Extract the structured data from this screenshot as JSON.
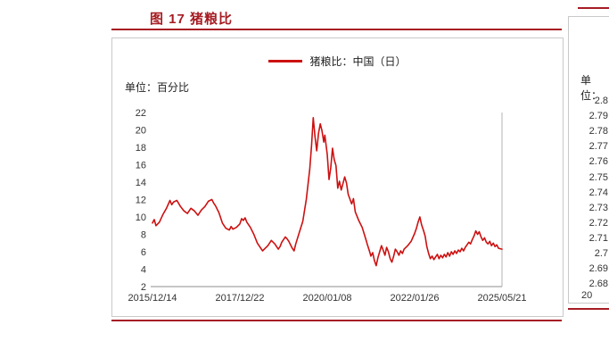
{
  "accent_color": "#a61c23",
  "line_color": "#cc1111",
  "left_panel": {
    "title": "图 17 猪粮比",
    "legend": "猪粮比：中国（日）",
    "unit": "单位：百分比"
  },
  "right_panel": {
    "unit": "单位：",
    "y_ticks": [
      "2.8",
      "2.79",
      "2.78",
      "2.77",
      "2.76",
      "2.75",
      "2.74",
      "2.73",
      "2.72",
      "2.71",
      "2.7",
      "2.69",
      "2.68"
    ],
    "partial_x_label": "20"
  },
  "chart_data": {
    "type": "line",
    "title": "图 17 猪粮比",
    "series_name": "猪粮比：中国（日）",
    "ylabel": "百分比",
    "ylim": [
      2,
      22
    ],
    "y_ticks": [
      22,
      20,
      18,
      16,
      14,
      12,
      10,
      8,
      6,
      4,
      2
    ],
    "x_tick_labels": [
      "2015/12/14",
      "2017/12/22",
      "2020/01/08",
      "2022/01/26",
      "2025/05/21"
    ],
    "grid": false,
    "legend_position": "top-center",
    "points": [
      [
        0,
        9.3
      ],
      [
        0.005,
        9.7
      ],
      [
        0.01,
        9.0
      ],
      [
        0.02,
        9.4
      ],
      [
        0.03,
        10.3
      ],
      [
        0.04,
        11.0
      ],
      [
        0.05,
        11.9
      ],
      [
        0.055,
        11.4
      ],
      [
        0.06,
        11.7
      ],
      [
        0.07,
        11.9
      ],
      [
        0.08,
        11.2
      ],
      [
        0.09,
        10.7
      ],
      [
        0.1,
        10.4
      ],
      [
        0.11,
        11.0
      ],
      [
        0.12,
        10.7
      ],
      [
        0.13,
        10.2
      ],
      [
        0.14,
        10.8
      ],
      [
        0.15,
        11.2
      ],
      [
        0.16,
        11.8
      ],
      [
        0.17,
        12.0
      ],
      [
        0.175,
        11.6
      ],
      [
        0.18,
        11.3
      ],
      [
        0.19,
        10.5
      ],
      [
        0.2,
        9.3
      ],
      [
        0.21,
        8.7
      ],
      [
        0.22,
        8.5
      ],
      [
        0.225,
        8.9
      ],
      [
        0.23,
        8.6
      ],
      [
        0.24,
        8.8
      ],
      [
        0.25,
        9.2
      ],
      [
        0.255,
        9.8
      ],
      [
        0.26,
        9.6
      ],
      [
        0.265,
        9.9
      ],
      [
        0.27,
        9.4
      ],
      [
        0.28,
        8.8
      ],
      [
        0.29,
        8.0
      ],
      [
        0.3,
        7.0
      ],
      [
        0.31,
        6.4
      ],
      [
        0.315,
        6.1
      ],
      [
        0.32,
        6.3
      ],
      [
        0.33,
        6.7
      ],
      [
        0.34,
        7.3
      ],
      [
        0.35,
        6.9
      ],
      [
        0.36,
        6.3
      ],
      [
        0.365,
        6.6
      ],
      [
        0.37,
        7.1
      ],
      [
        0.38,
        7.7
      ],
      [
        0.385,
        7.5
      ],
      [
        0.39,
        7.2
      ],
      [
        0.4,
        6.4
      ],
      [
        0.405,
        6.1
      ],
      [
        0.41,
        6.9
      ],
      [
        0.42,
        8.2
      ],
      [
        0.43,
        9.5
      ],
      [
        0.44,
        12.0
      ],
      [
        0.45,
        15.5
      ],
      [
        0.455,
        18.2
      ],
      [
        0.46,
        21.4
      ],
      [
        0.465,
        19.2
      ],
      [
        0.47,
        17.6
      ],
      [
        0.475,
        19.6
      ],
      [
        0.48,
        20.7
      ],
      [
        0.485,
        19.9
      ],
      [
        0.49,
        18.6
      ],
      [
        0.493,
        19.4
      ],
      [
        0.5,
        17.2
      ],
      [
        0.505,
        14.3
      ],
      [
        0.51,
        15.6
      ],
      [
        0.515,
        17.9
      ],
      [
        0.52,
        16.6
      ],
      [
        0.525,
        15.9
      ],
      [
        0.53,
        13.3
      ],
      [
        0.535,
        14.1
      ],
      [
        0.54,
        13.1
      ],
      [
        0.55,
        14.6
      ],
      [
        0.555,
        13.9
      ],
      [
        0.56,
        12.6
      ],
      [
        0.57,
        11.5
      ],
      [
        0.575,
        12.1
      ],
      [
        0.58,
        10.6
      ],
      [
        0.59,
        9.6
      ],
      [
        0.6,
        8.8
      ],
      [
        0.61,
        7.5
      ],
      [
        0.615,
        6.8
      ],
      [
        0.62,
        6.2
      ],
      [
        0.625,
        5.5
      ],
      [
        0.63,
        5.9
      ],
      [
        0.635,
        5.0
      ],
      [
        0.64,
        4.4
      ],
      [
        0.645,
        5.3
      ],
      [
        0.65,
        6.0
      ],
      [
        0.655,
        6.7
      ],
      [
        0.66,
        6.2
      ],
      [
        0.665,
        5.6
      ],
      [
        0.67,
        6.5
      ],
      [
        0.675,
        6.0
      ],
      [
        0.68,
        5.2
      ],
      [
        0.685,
        4.8
      ],
      [
        0.69,
        5.5
      ],
      [
        0.695,
        6.3
      ],
      [
        0.7,
        6.0
      ],
      [
        0.705,
        5.6
      ],
      [
        0.71,
        6.1
      ],
      [
        0.715,
        5.8
      ],
      [
        0.72,
        6.3
      ],
      [
        0.73,
        6.7
      ],
      [
        0.74,
        7.2
      ],
      [
        0.75,
        8.1
      ],
      [
        0.755,
        8.7
      ],
      [
        0.76,
        9.4
      ],
      [
        0.765,
        10.0
      ],
      [
        0.77,
        9.1
      ],
      [
        0.775,
        8.5
      ],
      [
        0.78,
        7.8
      ],
      [
        0.785,
        6.6
      ],
      [
        0.79,
        5.8
      ],
      [
        0.795,
        5.2
      ],
      [
        0.8,
        5.5
      ],
      [
        0.805,
        5.1
      ],
      [
        0.81,
        5.4
      ],
      [
        0.815,
        5.7
      ],
      [
        0.82,
        5.2
      ],
      [
        0.825,
        5.6
      ],
      [
        0.83,
        5.3
      ],
      [
        0.835,
        5.7
      ],
      [
        0.84,
        5.4
      ],
      [
        0.845,
        5.9
      ],
      [
        0.85,
        5.5
      ],
      [
        0.855,
        6.0
      ],
      [
        0.86,
        5.7
      ],
      [
        0.865,
        6.1
      ],
      [
        0.87,
        5.8
      ],
      [
        0.875,
        6.2
      ],
      [
        0.88,
        6.0
      ],
      [
        0.885,
        6.4
      ],
      [
        0.89,
        6.1
      ],
      [
        0.895,
        6.5
      ],
      [
        0.9,
        6.8
      ],
      [
        0.905,
        7.1
      ],
      [
        0.91,
        6.9
      ],
      [
        0.915,
        7.4
      ],
      [
        0.92,
        7.8
      ],
      [
        0.925,
        8.4
      ],
      [
        0.93,
        8.0
      ],
      [
        0.935,
        8.3
      ],
      [
        0.94,
        7.7
      ],
      [
        0.945,
        7.3
      ],
      [
        0.95,
        7.6
      ],
      [
        0.955,
        7.1
      ],
      [
        0.96,
        6.9
      ],
      [
        0.965,
        7.2
      ],
      [
        0.97,
        6.7
      ],
      [
        0.975,
        7.0
      ],
      [
        0.98,
        6.6
      ],
      [
        0.985,
        6.8
      ],
      [
        0.99,
        6.4
      ],
      [
        1,
        6.3
      ]
    ]
  }
}
